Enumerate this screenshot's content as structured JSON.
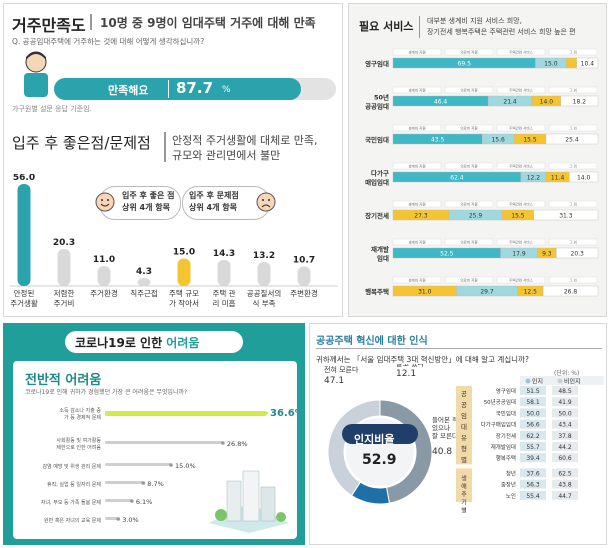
{
  "satisfaction": {
    "title": "거주만족도",
    "headline": "10명 중 9명이 임대주택 거주에 대해 만족",
    "question": "Q. 공공임대주택에 거주하는 것에 대해 어떻게 생각하십니까?",
    "bar_label": "만족해요",
    "value_text": "87.7",
    "value_unit": "%",
    "value": 87.7,
    "source": "가구원별 설문 응답 기준임."
  },
  "pros_cons": {
    "title": "입주 후 좋은점/문제점",
    "subtitle_line1": "안정적 주거생활에 대체로 만족,",
    "subtitle_line2": "규모와 관리면에서 불만",
    "good_badge_line1": "입주 후 좋은 점",
    "good_badge_line2": "상위 4개 항목",
    "bad_badge_line1": "입주 후 문제점",
    "bad_badge_line2": "상위 4개 항목"
  },
  "services": {
    "title": "필요 서비스",
    "desc_line1": "대부분 생계비 지원 서비스 희망,",
    "desc_line2": "장기전세 행복주택은 주택관련 서비스 희망 높은 편"
  },
  "covid": {
    "title_prefix": "코로나19로 인한 ",
    "title_highlight": "어려움",
    "subtitle": "전반적 어려움",
    "question": "코로나19로 인해 귀하가 경험했던 가장 큰 어려움은 무엇입니까?"
  },
  "awareness": {
    "title": "공공주택 혁신에 대한 인식",
    "question": "귀하께서는 「서울 임대주택 3대 혁신방안」에 대해 알고 계십니까?",
    "unit": "(단위: %)",
    "center_label": "인지비율",
    "center_value": "52.9",
    "table_group1": "공공임대유형별",
    "table_group2": "생애주기별"
  },
  "chart_data": [
    {
      "type": "bar",
      "id": "pros_cons",
      "categories": [
        "안정된 주거생활",
        "저렴한 주거비",
        "주거환경",
        "직주근접",
        "주택 규모가 작아서",
        "주택 관리 미흡",
        "공공질서의식 부족",
        "주변환경"
      ],
      "values": [
        56.0,
        20.3,
        11.0,
        4.3,
        15.0,
        14.3,
        13.2,
        10.7
      ],
      "groups": [
        "good",
        "good",
        "good",
        "good",
        "bad",
        "bad",
        "bad",
        "bad"
      ]
    },
    {
      "type": "bar",
      "id": "services",
      "orientation": "horizontal",
      "stacked": true,
      "categories": [
        "영구임대",
        "50년 공공임대",
        "국민임대",
        "다가구 매입임대",
        "장기전세",
        "재개발 임대",
        "행복주택"
      ],
      "series": [
        {
          "name": "생계비 지원",
          "values": [
            69.5,
            46.4,
            43.5,
            62.4,
            27.3,
            52.5,
            31.0
          ]
        },
        {
          "name": "의료비 지원",
          "values": [
            15.0,
            21.4,
            15.6,
            12.2,
            25.9,
            17.9,
            29.7
          ]
        },
        {
          "name": "주택관련 서비스",
          "values": [
            5.1,
            14.0,
            15.5,
            11.4,
            15.5,
            9.3,
            12.5
          ]
        },
        {
          "name": "그 외",
          "values": [
            10.4,
            18.2,
            25.4,
            14.0,
            31.3,
            20.3,
            26.8
          ]
        }
      ],
      "colors": [
        "#3fb7c4",
        "#9fd9df",
        "#f5c531",
        "#ffffff"
      ]
    },
    {
      "type": "bar",
      "id": "covid",
      "orientation": "horizontal",
      "categories": [
        "소득 감소나 지출 증가 등 경제적 문제",
        "사회활동 및 여가활동 제한으로 인한 어려움",
        "감염 예방 및 위생 관리 문제",
        "휴직, 실업 등 일자리 문제",
        "자녀, 부모 등 가족 돌봄 문제",
        "원만 혹은 자녀의 교육 문제"
      ],
      "values": [
        36.6,
        26.8,
        15.0,
        8.7,
        6.1,
        3.0
      ],
      "xlim": [
        0,
        40
      ]
    },
    {
      "type": "pie",
      "id": "awareness",
      "categories": [
        "전혀 모른다",
        "알고 있다",
        "들어본 적 있으나 잘 모른다"
      ],
      "values": [
        47.1,
        12.1,
        40.8
      ]
    },
    {
      "type": "table",
      "id": "awareness_table",
      "columns": [
        "인지",
        "비인지"
      ],
      "rows": [
        {
          "label": "영구임대",
          "values": [
            51.5,
            48.5
          ]
        },
        {
          "label": "50년공공임대",
          "values": [
            58.1,
            41.9
          ]
        },
        {
          "label": "국민임대",
          "values": [
            50.0,
            50.0
          ]
        },
        {
          "label": "다가구매입임대",
          "values": [
            56.6,
            43.4
          ]
        },
        {
          "label": "장기전세",
          "values": [
            62.2,
            37.8
          ]
        },
        {
          "label": "재개발임대",
          "values": [
            55.7,
            44.2
          ]
        },
        {
          "label": "행복주택",
          "values": [
            39.4,
            60.6
          ]
        },
        {
          "label": "청년",
          "values": [
            37.6,
            62.5
          ]
        },
        {
          "label": "중장년",
          "values": [
            56.3,
            43.8
          ]
        },
        {
          "label": "노인",
          "values": [
            55.4,
            44.7
          ]
        }
      ]
    }
  ]
}
